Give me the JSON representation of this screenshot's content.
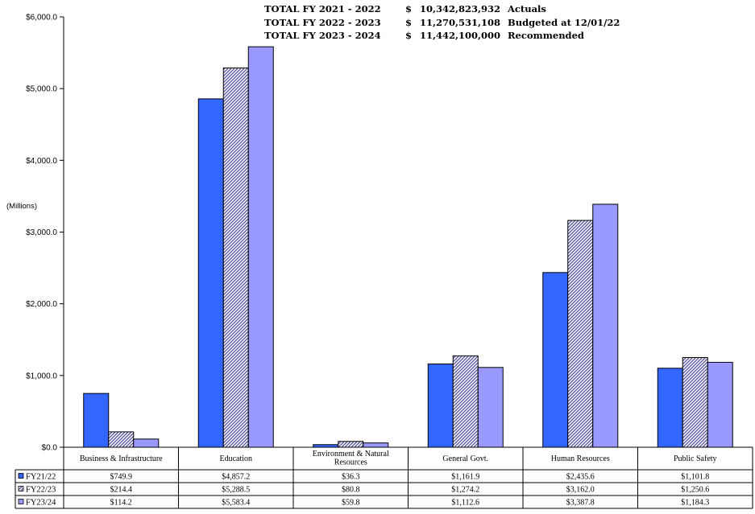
{
  "totals": [
    {
      "label": "TOTAL FY 2021 - 2022",
      "currency": "$",
      "amount": "10,342,823,932",
      "note": "Actuals"
    },
    {
      "label": "TOTAL FY 2022 - 2023",
      "currency": "$",
      "amount": "11,270,531,108",
      "note": "Budgeted at 12/01/22"
    },
    {
      "label": "TOTAL FY 2023 - 2024",
      "currency": "$",
      "amount": "11,442,100,000",
      "note": "Recommended"
    }
  ],
  "unit_label": "(Millions)",
  "colors": {
    "fy2122": "#3366ff",
    "fy2223_pattern": "#4d4d99",
    "fy2324": "#9999ff"
  },
  "chart_data": {
    "type": "bar",
    "ylabel": "(Millions)",
    "ylim": [
      0,
      6000
    ],
    "y_ticks": [
      "$0.0",
      "$1,000.0",
      "$2,000.0",
      "$3,000.0",
      "$4,000.0",
      "$5,000.0",
      "$6,000.0"
    ],
    "y_tick_values": [
      0,
      1000,
      2000,
      3000,
      4000,
      5000,
      6000
    ],
    "categories": [
      "Business & Infrastructure",
      "Education",
      "Environment & Natural Resources",
      "General Govt.",
      "Human Resources",
      "Public Safety"
    ],
    "category_lines": [
      [
        "Business & Infrastructure"
      ],
      [
        "Education"
      ],
      [
        "Environment & Natural",
        "Resources"
      ],
      [
        "General Govt."
      ],
      [
        "Human Resources"
      ],
      [
        "Public Safety"
      ]
    ],
    "series": [
      {
        "name": "FY21/22",
        "values": [
          749.9,
          4857.2,
          36.3,
          1161.9,
          2435.6,
          1101.8
        ],
        "labels": [
          "$749.9",
          "$4,857.2",
          "$36.3",
          "$1,161.9",
          "$2,435.6",
          "$1,101.8"
        ]
      },
      {
        "name": "FY22/23",
        "values": [
          214.4,
          5288.5,
          80.8,
          1274.2,
          3162.0,
          1250.6
        ],
        "labels": [
          "$214.4",
          "$5,288.5",
          "$80.8",
          "$1,274.2",
          "$3,162.0",
          "$1,250.6"
        ]
      },
      {
        "name": "FY23/24",
        "values": [
          114.2,
          5583.4,
          59.8,
          1112.6,
          3387.8,
          1184.3
        ],
        "labels": [
          "$114.2",
          "$5,583.4",
          "$59.8",
          "$1,112.6",
          "$3,387.8",
          "$1,184.3"
        ]
      }
    ],
    "legend": "data-table",
    "grid": false
  }
}
